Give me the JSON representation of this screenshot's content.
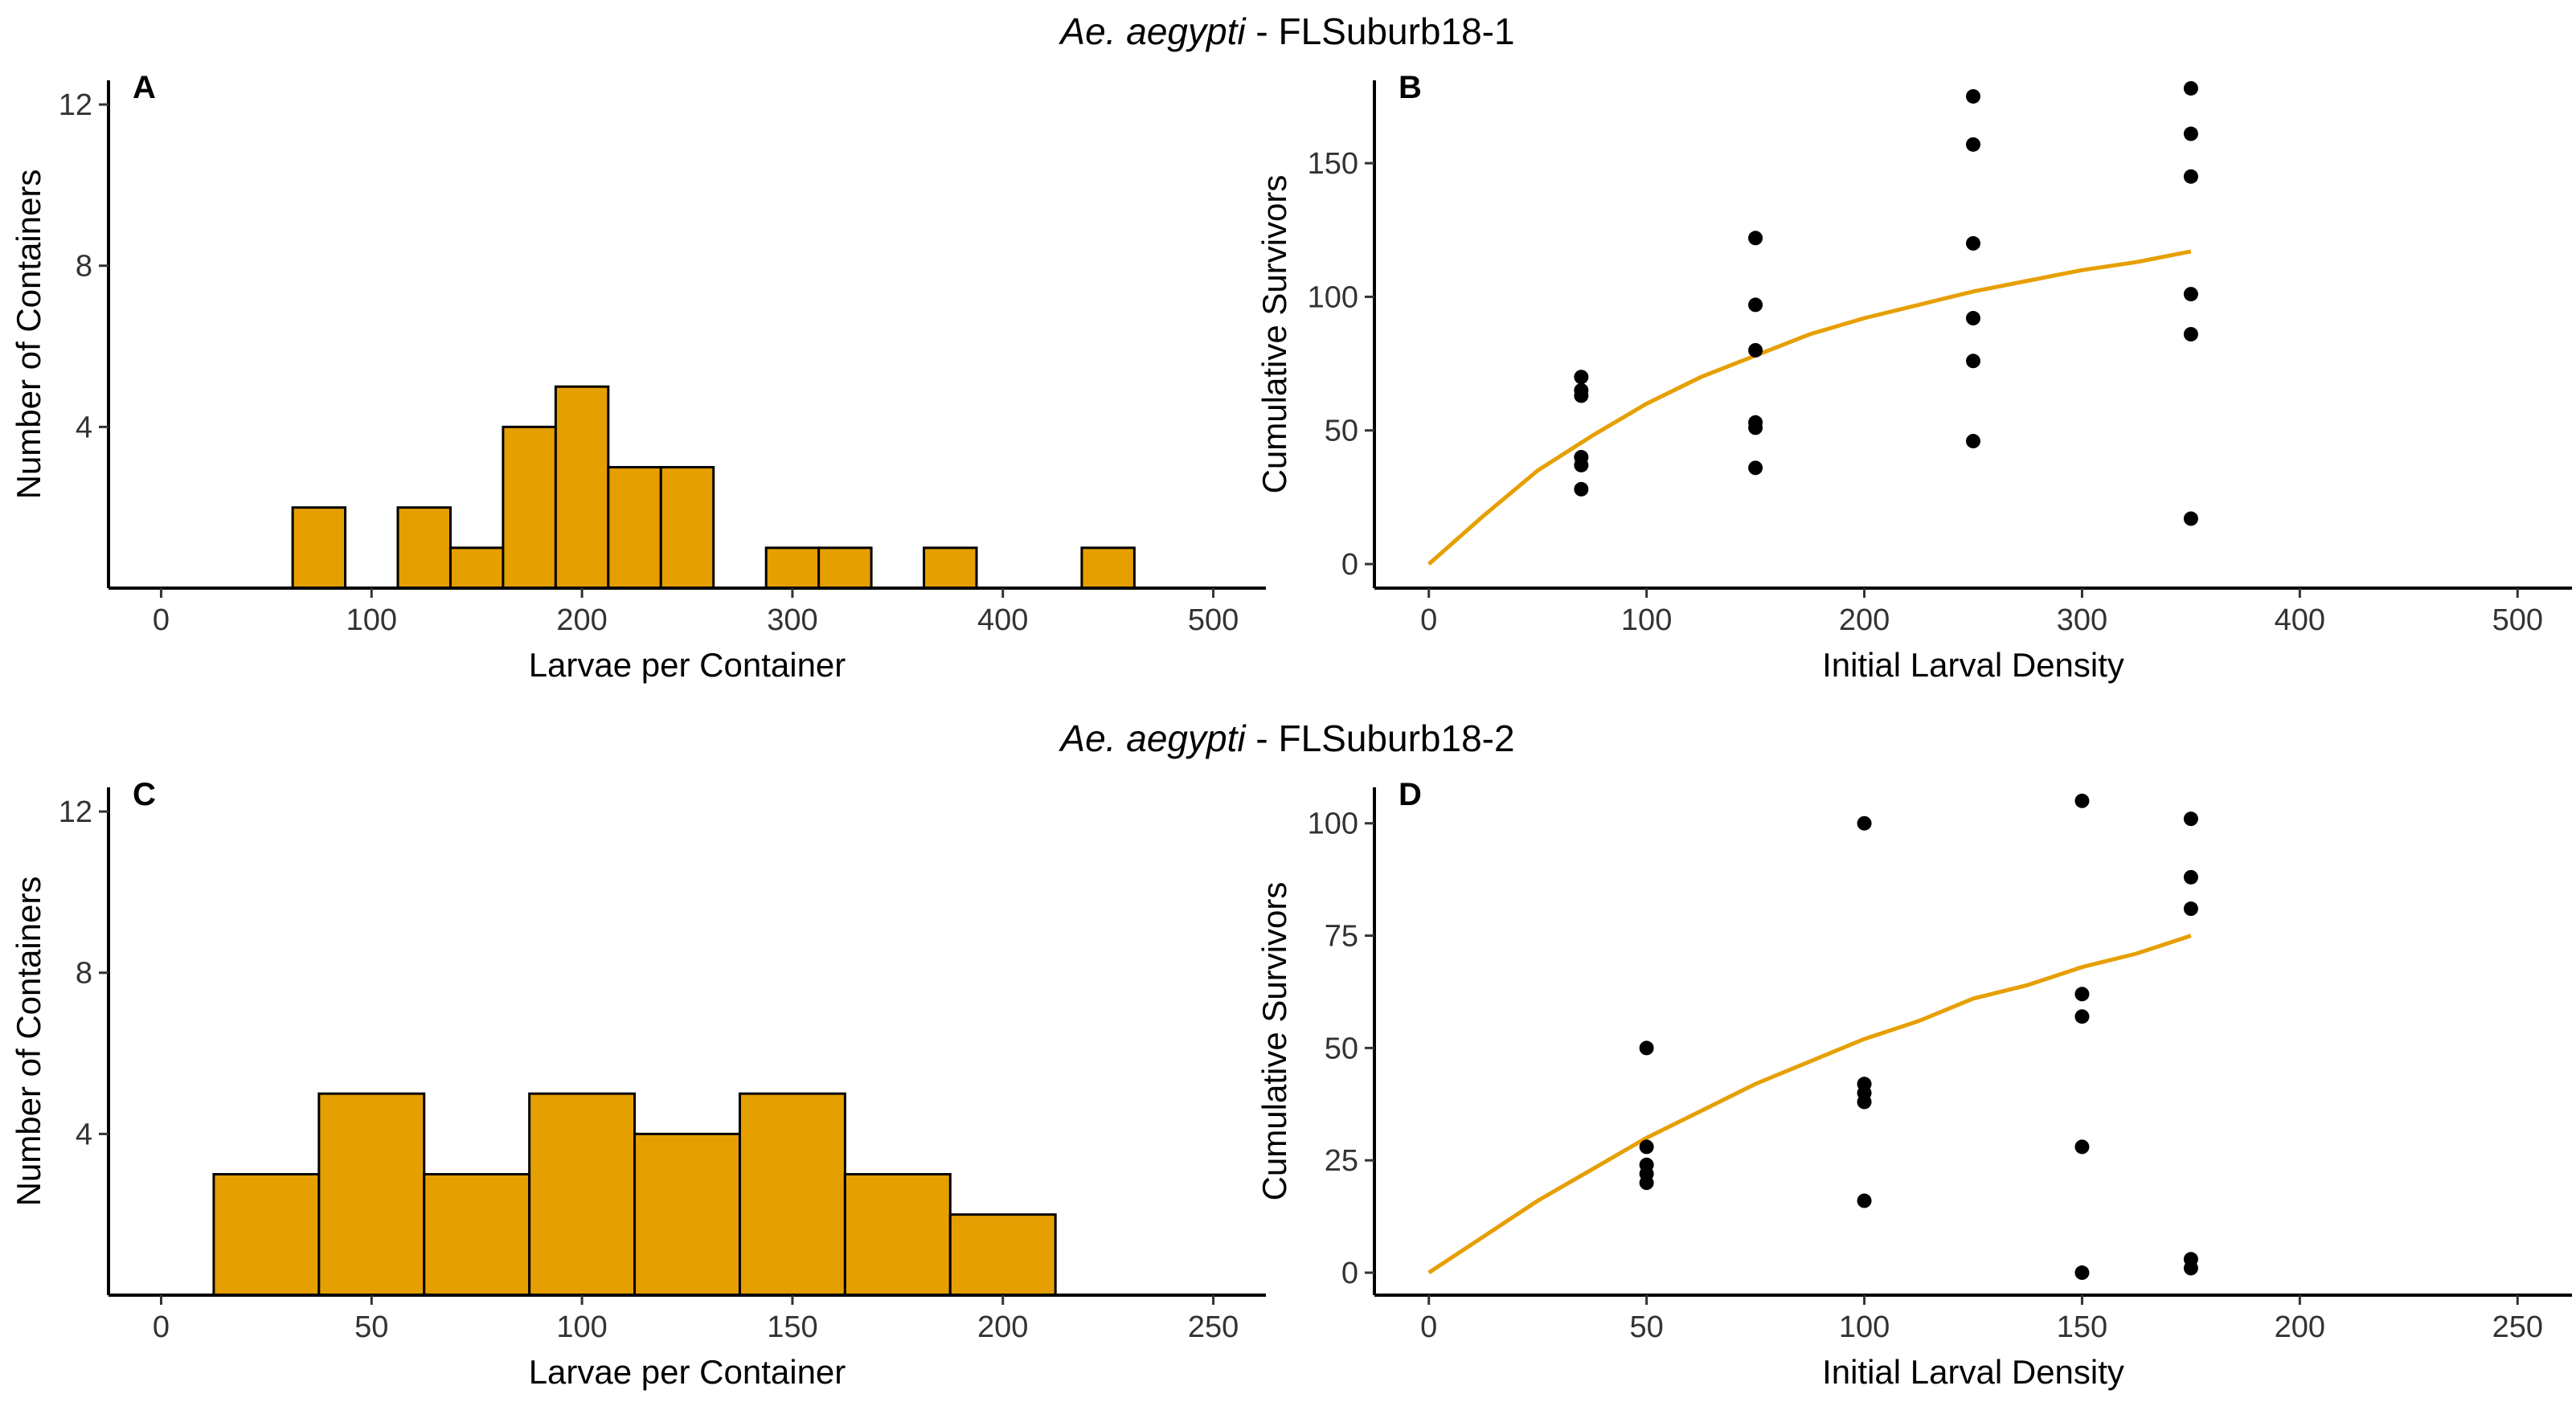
{
  "figure": {
    "row_titles": [
      {
        "species": "Ae. aegypti",
        "sep": " - ",
        "site": "FLSuburb18-1"
      },
      {
        "species": "Ae. aegypti",
        "sep": " - ",
        "site": "FLSuburb18-2"
      }
    ]
  },
  "chart_data": [
    {
      "panel": "A",
      "type": "bar",
      "subtype": "histogram",
      "xlabel": "Larvae per Container",
      "ylabel": "Number of Containers",
      "xlim": [
        -25,
        525
      ],
      "ylim": [
        0,
        12.6
      ],
      "xticks": [
        0,
        100,
        200,
        300,
        400,
        500
      ],
      "yticks": [
        4,
        8,
        12
      ],
      "bar_color": "#E69F00",
      "bins": [
        {
          "x0": 62.5,
          "x1": 87.5,
          "count": 2
        },
        {
          "x0": 112.5,
          "x1": 137.5,
          "count": 2
        },
        {
          "x0": 137.5,
          "x1": 162.5,
          "count": 1
        },
        {
          "x0": 162.5,
          "x1": 187.5,
          "count": 4
        },
        {
          "x0": 187.5,
          "x1": 212.5,
          "count": 5
        },
        {
          "x0": 212.5,
          "x1": 237.5,
          "count": 3
        },
        {
          "x0": 237.5,
          "x1": 262.5,
          "count": 3
        },
        {
          "x0": 287.5,
          "x1": 312.5,
          "count": 1
        },
        {
          "x0": 312.5,
          "x1": 337.5,
          "count": 1
        },
        {
          "x0": 362.5,
          "x1": 387.5,
          "count": 1
        },
        {
          "x0": 437.5,
          "x1": 462.5,
          "count": 1
        }
      ]
    },
    {
      "panel": "B",
      "type": "scatter",
      "xlabel": "Initial Larval Density",
      "ylabel": "Cumulative Survivors",
      "xlim": [
        -25,
        525
      ],
      "ylim": [
        -9,
        181
      ],
      "xticks": [
        0,
        100,
        200,
        300,
        400,
        500
      ],
      "yticks": [
        0,
        50,
        100,
        150
      ],
      "point_color": "#000000",
      "line_color": "#E69F00",
      "points": [
        [
          70,
          70
        ],
        [
          70,
          65
        ],
        [
          70,
          63
        ],
        [
          70,
          40
        ],
        [
          70,
          37
        ],
        [
          70,
          28
        ],
        [
          150,
          122
        ],
        [
          150,
          97
        ],
        [
          150,
          80
        ],
        [
          150,
          53
        ],
        [
          150,
          51
        ],
        [
          150,
          36
        ],
        [
          250,
          175
        ],
        [
          250,
          157
        ],
        [
          250,
          120
        ],
        [
          250,
          92
        ],
        [
          250,
          76
        ],
        [
          250,
          46
        ],
        [
          350,
          178
        ],
        [
          350,
          161
        ],
        [
          350,
          145
        ],
        [
          350,
          101
        ],
        [
          350,
          86
        ],
        [
          350,
          17
        ]
      ],
      "fit_line": [
        [
          0,
          0
        ],
        [
          25,
          18
        ],
        [
          50,
          35
        ],
        [
          75,
          48
        ],
        [
          100,
          60
        ],
        [
          125,
          70
        ],
        [
          150,
          78
        ],
        [
          175,
          86
        ],
        [
          200,
          92
        ],
        [
          225,
          97
        ],
        [
          250,
          102
        ],
        [
          275,
          106
        ],
        [
          300,
          110
        ],
        [
          325,
          113
        ],
        [
          350,
          117
        ]
      ]
    },
    {
      "panel": "C",
      "type": "bar",
      "subtype": "histogram",
      "xlabel": "Larvae per Container",
      "ylabel": "Number of Containers",
      "xlim": [
        -12.5,
        262.5
      ],
      "ylim": [
        0,
        12.6
      ],
      "xticks": [
        0,
        50,
        100,
        150,
        200,
        250
      ],
      "yticks": [
        4,
        8,
        12
      ],
      "bar_color": "#E69F00",
      "bins": [
        {
          "x0": 12.5,
          "x1": 37.5,
          "count": 3
        },
        {
          "x0": 37.5,
          "x1": 62.5,
          "count": 5
        },
        {
          "x0": 62.5,
          "x1": 87.5,
          "count": 3
        },
        {
          "x0": 87.5,
          "x1": 112.5,
          "count": 5
        },
        {
          "x0": 112.5,
          "x1": 137.5,
          "count": 4
        },
        {
          "x0": 137.5,
          "x1": 162.5,
          "count": 5
        },
        {
          "x0": 162.5,
          "x1": 187.5,
          "count": 3
        },
        {
          "x0": 187.5,
          "x1": 212.5,
          "count": 2
        }
      ]
    },
    {
      "panel": "D",
      "type": "scatter",
      "xlabel": "Initial Larval Density",
      "ylabel": "Cumulative Survivors",
      "xlim": [
        -12.5,
        262.5
      ],
      "ylim": [
        -5,
        108
      ],
      "xticks": [
        0,
        50,
        100,
        150,
        200,
        250
      ],
      "yticks": [
        0,
        25,
        50,
        75,
        100
      ],
      "point_color": "#000000",
      "line_color": "#E69F00",
      "points": [
        [
          50,
          50
        ],
        [
          50,
          28
        ],
        [
          50,
          24
        ],
        [
          50,
          22
        ],
        [
          50,
          20
        ],
        [
          100,
          100
        ],
        [
          100,
          42
        ],
        [
          100,
          40
        ],
        [
          100,
          38
        ],
        [
          100,
          16
        ],
        [
          150,
          105
        ],
        [
          150,
          62
        ],
        [
          150,
          57
        ],
        [
          150,
          28
        ],
        [
          150,
          0
        ],
        [
          175,
          101
        ],
        [
          175,
          88
        ],
        [
          175,
          81
        ],
        [
          175,
          3
        ],
        [
          175,
          1
        ]
      ],
      "fit_line": [
        [
          0,
          0
        ],
        [
          12.5,
          8
        ],
        [
          25,
          16
        ],
        [
          37.5,
          23
        ],
        [
          50,
          30
        ],
        [
          62.5,
          36
        ],
        [
          75,
          42
        ],
        [
          87.5,
          47
        ],
        [
          100,
          52
        ],
        [
          112.5,
          56
        ],
        [
          125,
          61
        ],
        [
          137.5,
          64
        ],
        [
          150,
          68
        ],
        [
          162.5,
          71
        ],
        [
          175,
          75
        ]
      ]
    }
  ]
}
